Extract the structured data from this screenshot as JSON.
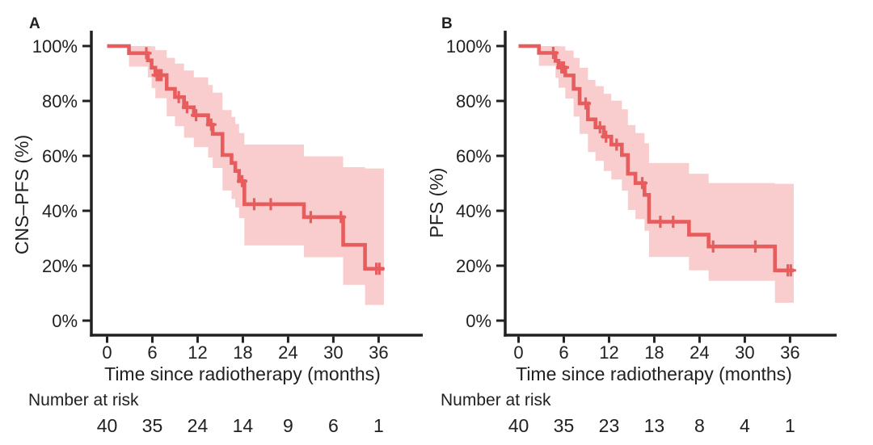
{
  "figure": {
    "background": "#ffffff",
    "colors": {
      "curve": "#e75d5d",
      "band": "#f9cdcd",
      "axis": "#232021",
      "text": "#232021"
    }
  },
  "chart_data": [
    {
      "type": "line",
      "subtype": "kaplan-meier-step-curve-with-confidence-band",
      "panel_label": "A",
      "ylabel": "CNS–PFS (%)",
      "xlabel": "Time since radiotherapy (months)",
      "x_tick_labels": [
        "0",
        "6",
        "12",
        "18",
        "24",
        "30",
        "36"
      ],
      "x_ticks": [
        0,
        6,
        12,
        18,
        24,
        30,
        36
      ],
      "y_tick_labels": [
        "0%",
        "20%",
        "40%",
        "60%",
        "80%",
        "100%"
      ],
      "y_ticks": [
        0,
        20,
        40,
        60,
        80,
        100
      ],
      "xlim": [
        0,
        42
      ],
      "ylim": [
        0,
        100
      ],
      "grid": false,
      "legend": "none",
      "steps": [
        {
          "t0": 0,
          "t1": 2.9,
          "s": 100,
          "lo": null,
          "hi": null
        },
        {
          "t0": 2.9,
          "t1": 5.4,
          "s": 97.4,
          "lo": 92.5,
          "hi": 100
        },
        {
          "t0": 5.4,
          "t1": 5.9,
          "s": 94.8,
          "lo": 88.6,
          "hi": 100
        },
        {
          "t0": 5.9,
          "t1": 6.4,
          "s": 92.1,
          "lo": 84.7,
          "hi": 99.9
        },
        {
          "t0": 6.4,
          "t1": 7.9,
          "s": 89.4,
          "lo": 81.0,
          "hi": 98.5
        },
        {
          "t0": 7.9,
          "t1": 9.0,
          "s": 84.4,
          "lo": 74.4,
          "hi": 95.7
        },
        {
          "t0": 9.0,
          "t1": 10.2,
          "s": 81.4,
          "lo": 70.8,
          "hi": 93.6
        },
        {
          "t0": 10.2,
          "t1": 11.5,
          "s": 77.7,
          "lo": 66.6,
          "hi": 91.1
        },
        {
          "t0": 11.5,
          "t1": 13.4,
          "s": 74.8,
          "lo": 63.2,
          "hi": 88.6
        },
        {
          "t0": 13.4,
          "t1": 14.0,
          "s": 71.4,
          "lo": 59.4,
          "hi": 85.8
        },
        {
          "t0": 14.0,
          "t1": 15.3,
          "s": 68.0,
          "lo": 55.6,
          "hi": 83.0
        },
        {
          "t0": 15.3,
          "t1": 16.5,
          "s": 60.3,
          "lo": 47.4,
          "hi": 76.7
        },
        {
          "t0": 16.5,
          "t1": 17.0,
          "s": 57.4,
          "lo": 44.3,
          "hi": 74.2
        },
        {
          "t0": 17.0,
          "t1": 17.5,
          "s": 54.5,
          "lo": 41.2,
          "hi": 71.6
        },
        {
          "t0": 17.5,
          "t1": 18.2,
          "s": 50.8,
          "lo": 37.3,
          "hi": 68.3
        },
        {
          "t0": 18.2,
          "t1": 26.1,
          "s": 42.4,
          "lo": 27.4,
          "hi": 64.1
        },
        {
          "t0": 26.1,
          "t1": 31.3,
          "s": 37.7,
          "lo": 23.1,
          "hi": 59.8
        },
        {
          "t0": 31.3,
          "t1": 34.2,
          "s": 27.6,
          "lo": 13.0,
          "hi": 55.9
        },
        {
          "t0": 34.2,
          "t1": 36.7,
          "s": 18.9,
          "lo": 5.7,
          "hi": 55.4
        }
      ],
      "censors": [
        [
          5.2,
          97.4
        ],
        [
          6.6,
          89.4
        ],
        [
          6.9,
          89.4
        ],
        [
          7.2,
          89.4
        ],
        [
          9.5,
          81.4
        ],
        [
          10.6,
          77.7
        ],
        [
          11.8,
          74.8
        ],
        [
          13.8,
          71.4
        ],
        [
          17.9,
          50.8
        ],
        [
          19.5,
          42.4
        ],
        [
          21.7,
          42.4
        ],
        [
          27.0,
          37.7
        ],
        [
          31.0,
          37.7
        ],
        [
          35.7,
          18.9
        ],
        [
          36.1,
          18.9
        ]
      ],
      "risk": {
        "label": "Number at risk",
        "times": [
          0,
          6,
          12,
          18,
          24,
          30,
          36
        ],
        "counts": [
          "40",
          "35",
          "24",
          "14",
          "9",
          "6",
          "1"
        ]
      }
    },
    {
      "type": "line",
      "subtype": "kaplan-meier-step-curve-with-confidence-band",
      "panel_label": "B",
      "ylabel": "PFS (%)",
      "xlabel": "Time since radiotherapy (months)",
      "x_tick_labels": [
        "0",
        "6",
        "12",
        "18",
        "24",
        "30",
        "36"
      ],
      "x_ticks": [
        0,
        6,
        12,
        18,
        24,
        30,
        36
      ],
      "y_tick_labels": [
        "0%",
        "20%",
        "40%",
        "60%",
        "80%",
        "100%"
      ],
      "y_ticks": [
        0,
        20,
        40,
        60,
        80,
        100
      ],
      "xlim": [
        0,
        42
      ],
      "ylim": [
        0,
        100
      ],
      "grid": false,
      "legend": "none",
      "steps": [
        {
          "t0": 0,
          "t1": 2.7,
          "s": 100,
          "lo": null,
          "hi": null
        },
        {
          "t0": 2.7,
          "t1": 4.9,
          "s": 97.5,
          "lo": 92.8,
          "hi": 100
        },
        {
          "t0": 4.9,
          "t1": 5.3,
          "s": 94.6,
          "lo": 88.4,
          "hi": 100
        },
        {
          "t0": 5.3,
          "t1": 6.2,
          "s": 92.2,
          "lo": 84.8,
          "hi": 99.9
        },
        {
          "t0": 6.2,
          "t1": 7.3,
          "s": 89.3,
          "lo": 80.9,
          "hi": 98.4
        },
        {
          "t0": 7.3,
          "t1": 8.1,
          "s": 84.4,
          "lo": 74.3,
          "hi": 95.7
        },
        {
          "t0": 8.1,
          "t1": 9.2,
          "s": 79.1,
          "lo": 68.0,
          "hi": 92.1
        },
        {
          "t0": 9.2,
          "t1": 10.2,
          "s": 73.3,
          "lo": 61.4,
          "hi": 87.7
        },
        {
          "t0": 10.2,
          "t1": 11.3,
          "s": 70.4,
          "lo": 58.2,
          "hi": 85.4
        },
        {
          "t0": 11.3,
          "t1": 12.3,
          "s": 67.0,
          "lo": 54.5,
          "hi": 82.6
        },
        {
          "t0": 12.3,
          "t1": 13.7,
          "s": 64.1,
          "lo": 51.4,
          "hi": 80.1
        },
        {
          "t0": 13.7,
          "t1": 14.5,
          "s": 60.3,
          "lo": 47.3,
          "hi": 77.0
        },
        {
          "t0": 14.5,
          "t1": 15.5,
          "s": 53.5,
          "lo": 40.3,
          "hi": 71.2
        },
        {
          "t0": 15.5,
          "t1": 16.7,
          "s": 50.1,
          "lo": 37.0,
          "hi": 68.3
        },
        {
          "t0": 16.7,
          "t1": 17.3,
          "s": 45.8,
          "lo": 32.7,
          "hi": 64.6
        },
        {
          "t0": 17.3,
          "t1": 22.6,
          "s": 36.0,
          "lo": 23.2,
          "hi": 57.4
        },
        {
          "t0": 22.6,
          "t1": 25.2,
          "s": 31.3,
          "lo": 18.3,
          "hi": 53.5
        },
        {
          "t0": 25.2,
          "t1": 34.0,
          "s": 27.0,
          "lo": 14.5,
          "hi": 50.1
        },
        {
          "t0": 34.0,
          "t1": 36.5,
          "s": 18.3,
          "lo": 6.5,
          "hi": 49.8
        }
      ],
      "censors": [
        [
          4.6,
          97.5
        ],
        [
          5.7,
          92.2
        ],
        [
          6.0,
          92.2
        ],
        [
          8.9,
          79.1
        ],
        [
          10.8,
          70.4
        ],
        [
          11.6,
          67.0
        ],
        [
          13.0,
          64.1
        ],
        [
          16.4,
          50.1
        ],
        [
          18.8,
          36.0
        ],
        [
          20.5,
          36.0
        ],
        [
          25.8,
          27.0
        ],
        [
          31.4,
          27.0
        ],
        [
          35.7,
          18.3
        ],
        [
          36.1,
          18.3
        ]
      ],
      "risk": {
        "label": "Number at risk",
        "times": [
          0,
          6,
          12,
          18,
          24,
          30,
          36
        ],
        "counts": [
          "40",
          "35",
          "23",
          "13",
          "8",
          "4",
          "1"
        ]
      }
    }
  ]
}
